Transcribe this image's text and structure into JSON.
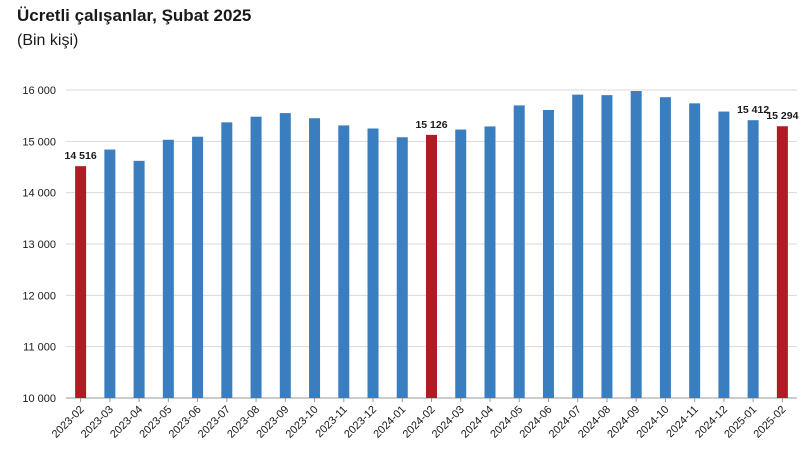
{
  "title": "Ücretli çalışanlar, Şubat 2025",
  "subtitle": "(Bin kişi)",
  "colors": {
    "blue": "#3a7ebf",
    "red": "#b01c24",
    "grid": "#d9d9d9",
    "axis": "#999999",
    "text": "#1a1a1a"
  },
  "chart_data": {
    "type": "bar",
    "title": "Ücretli çalışanlar, Şubat 2025",
    "subtitle": "(Bin kişi)",
    "ylim": [
      10000,
      16000
    ],
    "yticks": [
      10000,
      11000,
      12000,
      13000,
      14000,
      15000,
      16000
    ],
    "ytick_labels": [
      "10 000",
      "11 000",
      "12 000",
      "13 000",
      "14 000",
      "15 000",
      "16 000"
    ],
    "grid": true,
    "categories": [
      "2023-02",
      "2023-03",
      "2023-04",
      "2023-05",
      "2023-06",
      "2023-07",
      "2023-08",
      "2023-09",
      "2023-10",
      "2023-11",
      "2023-12",
      "2024-01",
      "2024-02",
      "2024-03",
      "2024-04",
      "2024-05",
      "2024-06",
      "2024-07",
      "2024-08",
      "2024-09",
      "2024-10",
      "2024-11",
      "2024-12",
      "2025-01",
      "2025-02"
    ],
    "values": [
      14516,
      14840,
      14620,
      15030,
      15090,
      15370,
      15480,
      15550,
      15450,
      15310,
      15250,
      15080,
      15126,
      15230,
      15290,
      15700,
      15610,
      15910,
      15900,
      15980,
      15860,
      15740,
      15580,
      15412,
      15294
    ],
    "highlight": [
      true,
      false,
      false,
      false,
      false,
      false,
      false,
      false,
      false,
      false,
      false,
      false,
      true,
      false,
      false,
      false,
      false,
      false,
      false,
      false,
      false,
      false,
      false,
      false,
      true
    ],
    "data_labels": [
      {
        "category": "2023-02",
        "text": "14 516"
      },
      {
        "category": "2024-02",
        "text": "15 126"
      },
      {
        "category": "2025-01",
        "text": "15 412"
      },
      {
        "category": "2025-02",
        "text": "15 294"
      }
    ]
  }
}
